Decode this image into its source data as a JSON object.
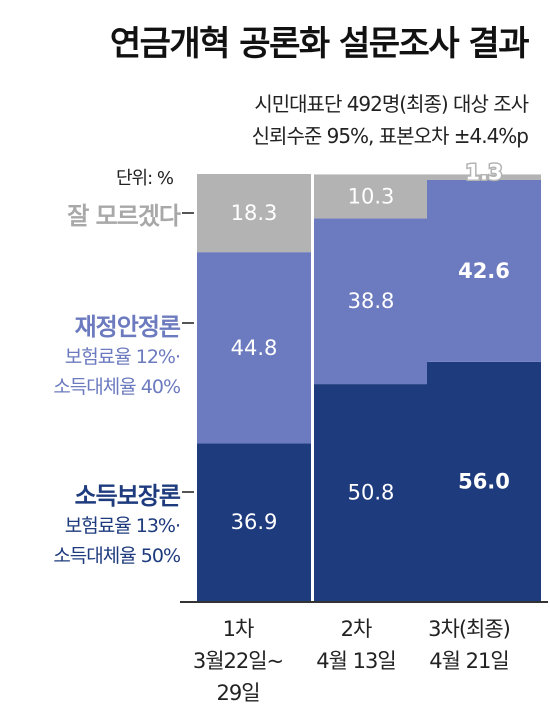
{
  "title": "연금개혁 공론화 설문조사 결과",
  "subtitle": [
    "시민대표단 492명(최종) 대상 조사",
    "신뢰수준 95%, 표본오차 ±4.4%p"
  ],
  "unit": "단위: %",
  "categories": [
    {
      "title": "잘 모르겠다",
      "desc": [],
      "color": "#b3b3b3"
    },
    {
      "title": "재정안정론",
      "desc": [
        "보험료율 12%·",
        "소득대체율 40%"
      ],
      "color": "#6c7bbf"
    },
    {
      "title": "소득보장론",
      "desc": [
        "보험료율 13%·",
        "소득대체율 50%"
      ],
      "color": "#1e3b7e"
    }
  ],
  "colors": {
    "dont_know": "#b3b3b3",
    "dont_know_text": "#a8a8a8",
    "fiscal": "#6c7bbf",
    "fiscal_text": "#6c7bbf",
    "income": "#1e3b7e",
    "income_text": "#1e3b7e",
    "label_text": "#ffffff"
  },
  "xlabels": [
    [
      "1차",
      "3월22일~",
      "29일"
    ],
    [
      "2차",
      "4월 13일"
    ],
    [
      "3차(최종)",
      "4월 21일"
    ]
  ],
  "chart_data": {
    "type": "bar",
    "stacked": true,
    "categories": [
      "1차",
      "2차",
      "3차(최종)"
    ],
    "series": [
      {
        "name": "소득보장론",
        "values": [
          36.9,
          50.8,
          56.0
        ],
        "labels": [
          "36.9",
          "50.8",
          "56.0"
        ],
        "color": "#1e3b7e"
      },
      {
        "name": "재정안정론",
        "values": [
          44.8,
          38.8,
          42.6
        ],
        "labels": [
          "44.8",
          "38.8",
          "42.6"
        ],
        "color": "#6c7bbf"
      },
      {
        "name": "잘 모르겠다",
        "values": [
          18.3,
          10.3,
          1.3
        ],
        "labels": [
          "18.3",
          "10.3",
          "1.3"
        ],
        "color": "#b3b3b3"
      }
    ],
    "bold_category": "3차(최종)",
    "ylim": [
      0,
      100
    ],
    "grid": false,
    "legend": "left"
  }
}
